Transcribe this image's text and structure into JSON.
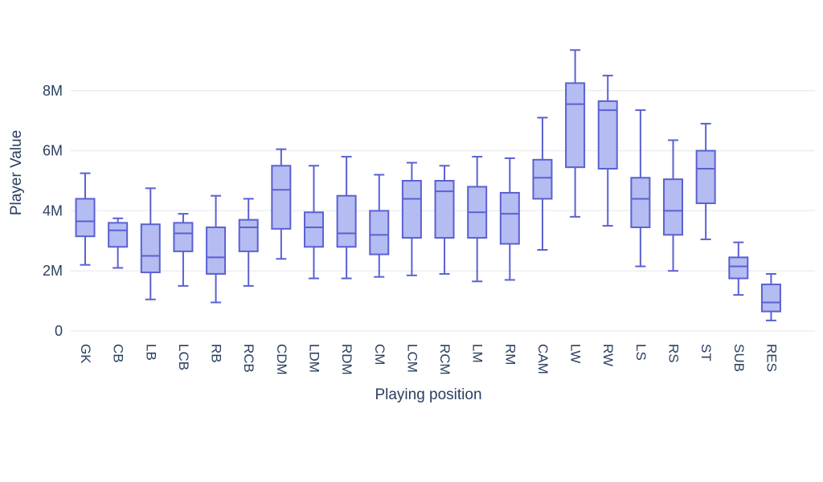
{
  "chart_data": {
    "type": "box",
    "title": "",
    "xlabel": "Playing position",
    "ylabel": "Player Value",
    "value_unit": "M",
    "ylim": [
      0,
      9.6
    ],
    "grid": true,
    "legend": false,
    "colors": {
      "box_fill": "#b4bcf2",
      "box_stroke": "#5a61d2",
      "grid_color": "#eceef3",
      "text_color": "#2a3f5f"
    },
    "yticks": [
      {
        "value": 0,
        "label": "0"
      },
      {
        "value": 2,
        "label": "2M"
      },
      {
        "value": 4,
        "label": "4M"
      },
      {
        "value": 6,
        "label": "6M"
      },
      {
        "value": 8,
        "label": "8M"
      }
    ],
    "categories": [
      "GK",
      "CB",
      "LB",
      "LCB",
      "RB",
      "RCB",
      "CDM",
      "LDM",
      "RDM",
      "CM",
      "LCM",
      "RCM",
      "LM",
      "RM",
      "CAM",
      "LW",
      "RW",
      "LS",
      "RS",
      "ST",
      "SUB",
      "RES"
    ],
    "boxes": [
      {
        "label": "GK",
        "min": 2.2,
        "q1": 3.15,
        "median": 3.65,
        "q3": 4.4,
        "max": 5.25
      },
      {
        "label": "CB",
        "min": 2.1,
        "q1": 2.8,
        "median": 3.35,
        "q3": 3.6,
        "max": 3.75
      },
      {
        "label": "LB",
        "min": 1.05,
        "q1": 1.95,
        "median": 2.5,
        "q3": 3.55,
        "max": 4.75
      },
      {
        "label": "LCB",
        "min": 1.5,
        "q1": 2.65,
        "median": 3.25,
        "q3": 3.6,
        "max": 3.9
      },
      {
        "label": "RB",
        "min": 0.95,
        "q1": 1.9,
        "median": 2.45,
        "q3": 3.45,
        "max": 4.5
      },
      {
        "label": "RCB",
        "min": 1.5,
        "q1": 2.65,
        "median": 3.45,
        "q3": 3.7,
        "max": 4.4
      },
      {
        "label": "CDM",
        "min": 2.4,
        "q1": 3.4,
        "median": 4.7,
        "q3": 5.5,
        "max": 6.05
      },
      {
        "label": "LDM",
        "min": 1.75,
        "q1": 2.8,
        "median": 3.45,
        "q3": 3.95,
        "max": 5.5
      },
      {
        "label": "RDM",
        "min": 1.75,
        "q1": 2.8,
        "median": 3.25,
        "q3": 4.5,
        "max": 5.8
      },
      {
        "label": "CM",
        "min": 1.8,
        "q1": 2.55,
        "median": 3.2,
        "q3": 4.0,
        "max": 5.2
      },
      {
        "label": "LCM",
        "min": 1.85,
        "q1": 3.1,
        "median": 4.4,
        "q3": 5.0,
        "max": 5.6
      },
      {
        "label": "RCM",
        "min": 1.9,
        "q1": 3.1,
        "median": 4.65,
        "q3": 5.0,
        "max": 5.5
      },
      {
        "label": "LM",
        "min": 1.65,
        "q1": 3.1,
        "median": 3.95,
        "q3": 4.8,
        "max": 5.8
      },
      {
        "label": "RM",
        "min": 1.7,
        "q1": 2.9,
        "median": 3.9,
        "q3": 4.6,
        "max": 5.75
      },
      {
        "label": "CAM",
        "min": 2.7,
        "q1": 4.4,
        "median": 5.1,
        "q3": 5.7,
        "max": 7.1
      },
      {
        "label": "LW",
        "min": 3.8,
        "q1": 5.45,
        "median": 7.55,
        "q3": 8.25,
        "max": 9.35
      },
      {
        "label": "RW",
        "min": 3.5,
        "q1": 5.4,
        "median": 7.35,
        "q3": 7.65,
        "max": 8.5
      },
      {
        "label": "LS",
        "min": 2.15,
        "q1": 3.45,
        "median": 4.4,
        "q3": 5.1,
        "max": 7.35
      },
      {
        "label": "RS",
        "min": 2.0,
        "q1": 3.2,
        "median": 4.0,
        "q3": 5.05,
        "max": 6.35
      },
      {
        "label": "ST",
        "min": 3.05,
        "q1": 4.25,
        "median": 5.4,
        "q3": 6.0,
        "max": 6.9
      },
      {
        "label": "SUB",
        "min": 1.2,
        "q1": 1.75,
        "median": 2.15,
        "q3": 2.45,
        "max": 2.95
      },
      {
        "label": "RES",
        "min": 0.35,
        "q1": 0.65,
        "median": 0.95,
        "q3": 1.55,
        "max": 1.9
      }
    ]
  }
}
